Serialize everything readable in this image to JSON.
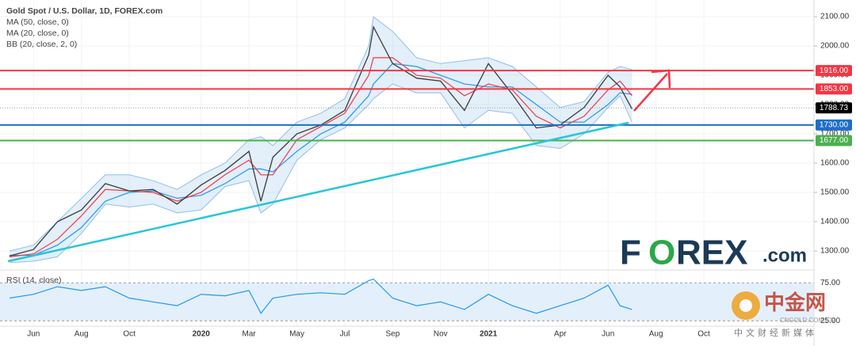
{
  "chart_data": {
    "type": "line",
    "title": "Gold Spot / U.S. Dollar, 1D, FOREX.com",
    "xlim": [
      -1.4,
      32.6
    ],
    "ylim": [
      1235,
      2157
    ],
    "xticks": [
      {
        "value": 0,
        "label": "Jun"
      },
      {
        "value": 2,
        "label": "Aug"
      },
      {
        "value": 4,
        "label": "Oct"
      },
      {
        "value": 7,
        "label": "2020"
      },
      {
        "value": 9,
        "label": "Mar"
      },
      {
        "value": 11,
        "label": "May"
      },
      {
        "value": 13,
        "label": "Jul"
      },
      {
        "value": 15,
        "label": "Sep"
      },
      {
        "value": 17,
        "label": "Nov"
      },
      {
        "value": 19,
        "label": "2021"
      },
      {
        "value": 22,
        "label": "Apr"
      },
      {
        "value": 24,
        "label": "Jun"
      },
      {
        "value": 26,
        "label": "Aug"
      },
      {
        "value": 28,
        "label": "Oct"
      }
    ],
    "yticks": [
      {
        "value": 1300,
        "label": "1300.00"
      },
      {
        "value": 1400,
        "label": "1400.00"
      },
      {
        "value": 1500,
        "label": "1500.00"
      },
      {
        "value": 1600,
        "label": "1600.00"
      },
      {
        "value": 1700,
        "label": "1700.00"
      },
      {
        "value": 1800,
        "label": "1800.00"
      },
      {
        "value": 1900,
        "label": "1900.00"
      },
      {
        "value": 2000,
        "label": "2000.00"
      },
      {
        "value": 2100,
        "label": "2100.00"
      }
    ],
    "x": [
      -1,
      0,
      1,
      2,
      3,
      4,
      5,
      6,
      7,
      8,
      9,
      9.5,
      10,
      11,
      12,
      13,
      14,
      14.2,
      15,
      16,
      17,
      18,
      19,
      20,
      21,
      22,
      23,
      24,
      24.5,
      25
    ],
    "price": {
      "color": "#3a3a3a",
      "values": [
        1283,
        1305,
        1400,
        1440,
        1530,
        1505,
        1510,
        1460,
        1525,
        1575,
        1640,
        1470,
        1620,
        1700,
        1730,
        1780,
        1970,
        2065,
        1940,
        1890,
        1880,
        1780,
        1940,
        1835,
        1720,
        1730,
        1790,
        1900,
        1860,
        1785
      ]
    },
    "series": [
      {
        "name": "MA (50, close, 0)",
        "color": "#2196f3",
        "values": [
          1285,
          1285,
          1320,
          1380,
          1470,
          1500,
          1505,
          1480,
          1490,
          1530,
          1580,
          1580,
          1570,
          1640,
          1700,
          1740,
          1830,
          1870,
          1940,
          1930,
          1900,
          1870,
          1860,
          1860,
          1800,
          1740,
          1740,
          1800,
          1840,
          1835
        ]
      },
      {
        "name": "MA (20, close, 0)",
        "color": "#f23645",
        "values": [
          1280,
          1290,
          1340,
          1420,
          1510,
          1505,
          1500,
          1470,
          1500,
          1560,
          1610,
          1560,
          1560,
          1680,
          1725,
          1770,
          1900,
          1960,
          1960,
          1900,
          1890,
          1830,
          1870,
          1850,
          1760,
          1720,
          1760,
          1850,
          1880,
          1830
        ]
      }
    ],
    "bands": {
      "name": "BB (20, close, 2, 0)",
      "color": "#90bfe8",
      "upper": [
        1300,
        1320,
        1400,
        1480,
        1560,
        1560,
        1540,
        1510,
        1560,
        1600,
        1680,
        1690,
        1660,
        1740,
        1770,
        1820,
        2000,
        2100,
        2050,
        1960,
        1940,
        1950,
        1960,
        1930,
        1860,
        1790,
        1810,
        1910,
        1930,
        1920
      ],
      "lower": [
        1260,
        1265,
        1280,
        1360,
        1460,
        1450,
        1460,
        1430,
        1440,
        1520,
        1540,
        1430,
        1460,
        1610,
        1680,
        1720,
        1800,
        1820,
        1870,
        1840,
        1840,
        1720,
        1780,
        1770,
        1660,
        1650,
        1700,
        1790,
        1830,
        1740
      ]
    },
    "levels": [
      {
        "value": 1916,
        "label": "1916.00",
        "color": "#f23645"
      },
      {
        "value": 1853,
        "label": "1853.00",
        "color": "#f23645"
      },
      {
        "value": 1730,
        "label": "1730.00",
        "color": "#1e6ec8"
      },
      {
        "value": 1677,
        "label": "1677.00",
        "color": "#4caf50"
      }
    ],
    "last_price": {
      "value": 1788.73,
      "label": "1788.73",
      "color": "#000000"
    },
    "rsi": {
      "name": "RSI (14, close)",
      "color": "#2196f3",
      "ylim": [
        18,
        92
      ],
      "yticks": [
        {
          "value": 75,
          "label": "75.00"
        },
        {
          "value": 25,
          "label": "25.00"
        }
      ],
      "values": [
        55,
        60,
        70,
        65,
        70,
        55,
        50,
        45,
        60,
        58,
        65,
        35,
        55,
        60,
        62,
        60,
        78,
        80,
        55,
        45,
        50,
        40,
        60,
        45,
        35,
        45,
        55,
        72,
        45,
        40
      ]
    },
    "logo": {
      "left": "F",
      "mid": "O",
      "right": "REX",
      "suffix": ".com"
    },
    "watermark": {
      "name": "中金网",
      "site": "CNGOLD.COM.CN",
      "tagline": "中文财经新媒体"
    }
  }
}
